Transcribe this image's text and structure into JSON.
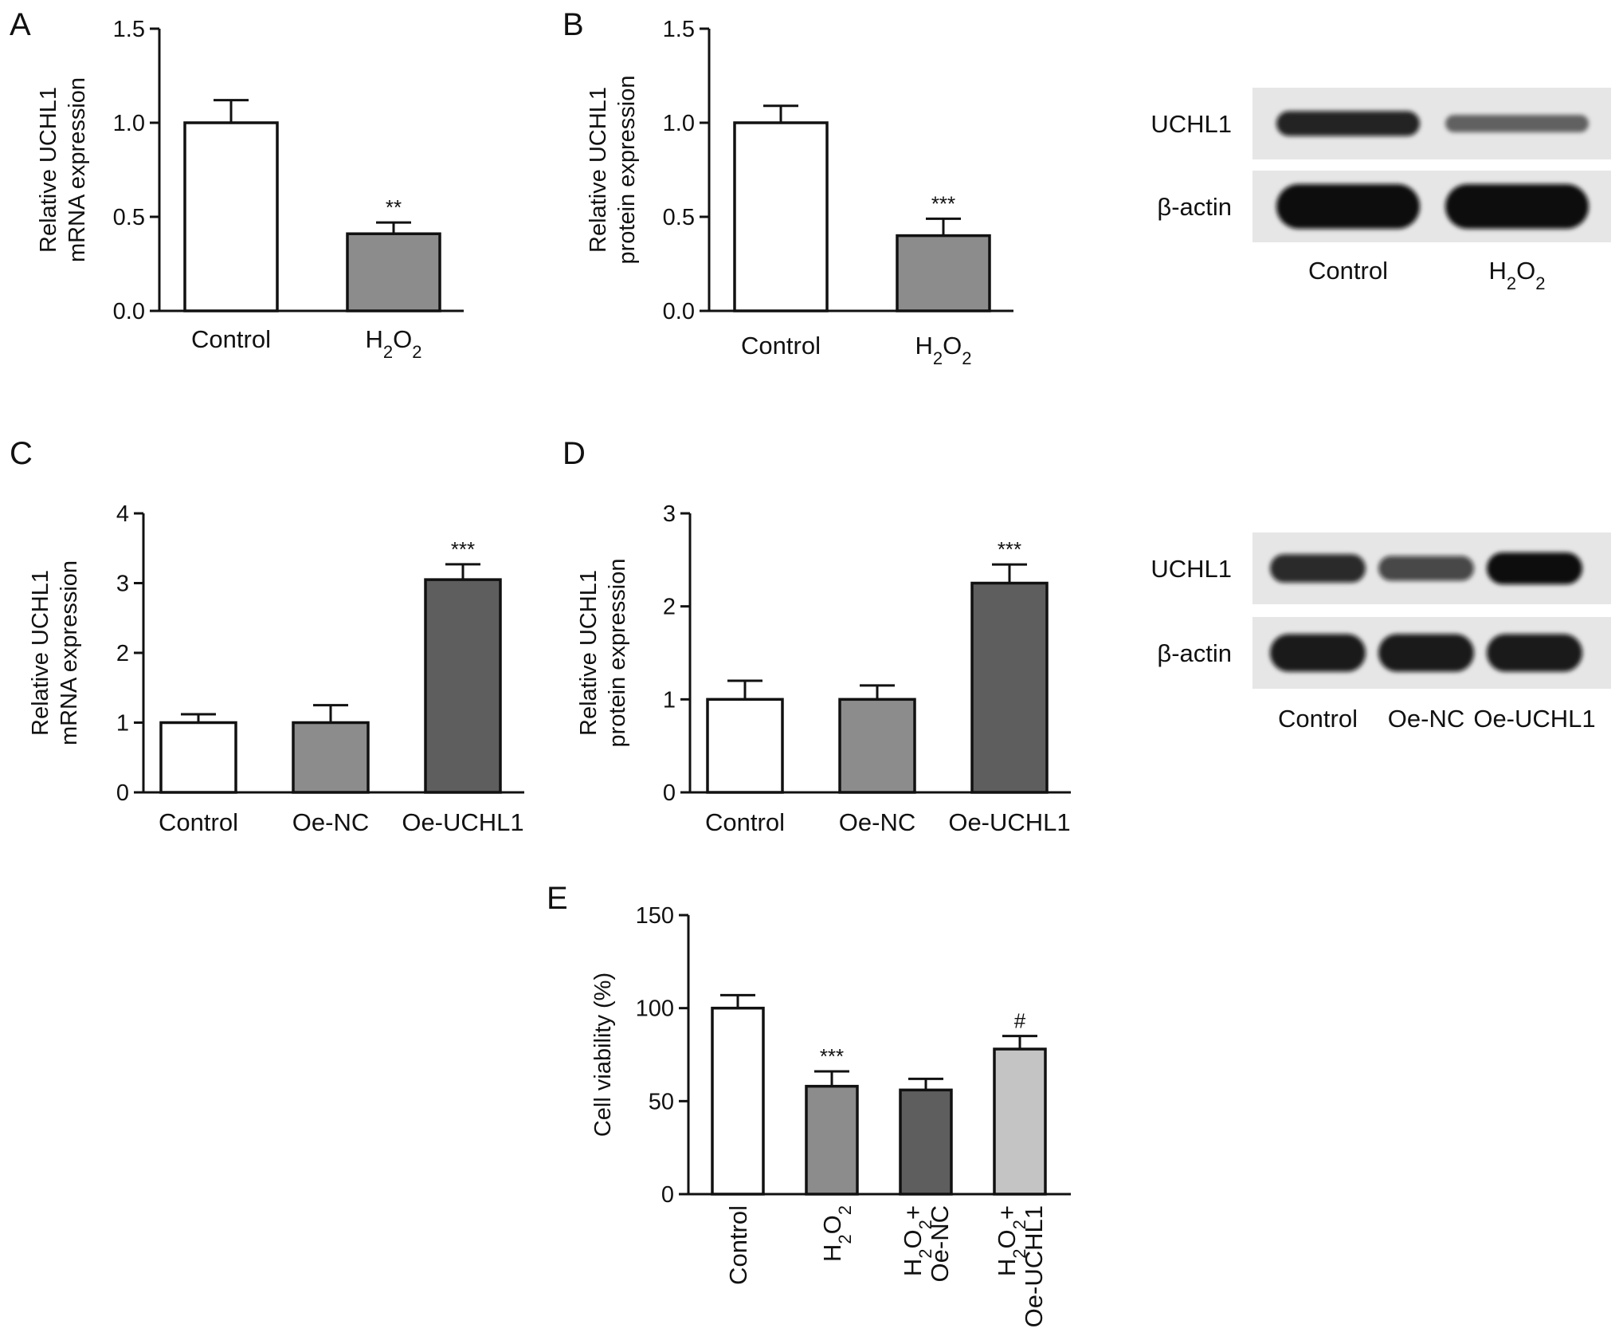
{
  "figure": {
    "panel_letters": [
      "A",
      "B",
      "C",
      "D",
      "E"
    ]
  },
  "chart_data": [
    {
      "id": "A",
      "type": "bar",
      "ylabel_lines": [
        "Relative UCHL1",
        "mRNA expression"
      ],
      "categories": [
        "Control",
        "H2O2"
      ],
      "values": [
        1.0,
        0.41
      ],
      "errors": [
        0.12,
        0.06
      ],
      "significance": [
        "",
        "**"
      ],
      "ylim": [
        0,
        1.5
      ],
      "yticks": [
        "0.0",
        "0.5",
        "1.0",
        "1.5"
      ],
      "bar_colors": [
        "#ffffff",
        "#8c8c8c"
      ]
    },
    {
      "id": "B",
      "type": "bar",
      "ylabel_lines": [
        "Relative UCHL1",
        "protein expression"
      ],
      "categories": [
        "Control",
        "H2O2"
      ],
      "values": [
        1.0,
        0.4
      ],
      "errors": [
        0.09,
        0.09
      ],
      "significance": [
        "",
        "***"
      ],
      "ylim": [
        0,
        1.5
      ],
      "yticks": [
        "0.0",
        "0.5",
        "1.0",
        "1.5"
      ],
      "bar_colors": [
        "#ffffff",
        "#8c8c8c"
      ]
    },
    {
      "id": "C",
      "type": "bar",
      "ylabel_lines": [
        "Relative UCHL1",
        "mRNA expression"
      ],
      "categories": [
        "Control",
        "Oe-NC",
        "Oe-UCHL1"
      ],
      "values": [
        1.0,
        1.0,
        3.05
      ],
      "errors": [
        0.12,
        0.25,
        0.22
      ],
      "significance": [
        "",
        "",
        "***"
      ],
      "ylim": [
        0,
        4
      ],
      "yticks": [
        "0",
        "1",
        "2",
        "3",
        "4"
      ],
      "bar_colors": [
        "#ffffff",
        "#8c8c8c",
        "#5e5e5e"
      ]
    },
    {
      "id": "D",
      "type": "bar",
      "ylabel_lines": [
        "Relative UCHL1",
        "protein expression"
      ],
      "categories": [
        "Control",
        "Oe-NC",
        "Oe-UCHL1"
      ],
      "values": [
        1.0,
        1.0,
        2.25
      ],
      "errors": [
        0.2,
        0.15,
        0.2
      ],
      "significance": [
        "",
        "",
        "***"
      ],
      "ylim": [
        0,
        3
      ],
      "yticks": [
        "0",
        "1",
        "2",
        "3"
      ],
      "bar_colors": [
        "#ffffff",
        "#8c8c8c",
        "#5e5e5e"
      ]
    },
    {
      "id": "E",
      "type": "bar",
      "ylabel_lines": [
        "Cell viability (%)"
      ],
      "categories": [
        "Control",
        "H2O2",
        "H2O2+ Oe-NC",
        "H2O2+ Oe-UCHL1"
      ],
      "values": [
        100,
        58,
        56,
        78
      ],
      "errors": [
        7,
        8,
        6,
        7
      ],
      "significance": [
        "",
        "***",
        "",
        "#"
      ],
      "ylim": [
        0,
        150
      ],
      "yticks": [
        "0",
        "50",
        "100",
        "150"
      ],
      "bar_colors": [
        "#ffffff",
        "#8c8c8c",
        "#5e5e5e",
        "#c4c4c4"
      ]
    }
  ],
  "blots": [
    {
      "id": "B-blot",
      "rows": [
        {
          "label": "UCHL1",
          "intensity": [
            0.85,
            0.35
          ]
        },
        {
          "label": "β-actin",
          "intensity": [
            1.0,
            1.0
          ]
        }
      ],
      "lanes": [
        "Control",
        "H2O2"
      ]
    },
    {
      "id": "D-blot",
      "rows": [
        {
          "label": "UCHL1",
          "intensity": [
            0.8,
            0.6,
            1.0
          ]
        },
        {
          "label": "β-actin",
          "intensity": [
            0.9,
            0.9,
            0.9
          ]
        }
      ],
      "lanes": [
        "Control",
        "Oe-NC",
        "Oe-UCHL1"
      ]
    }
  ]
}
